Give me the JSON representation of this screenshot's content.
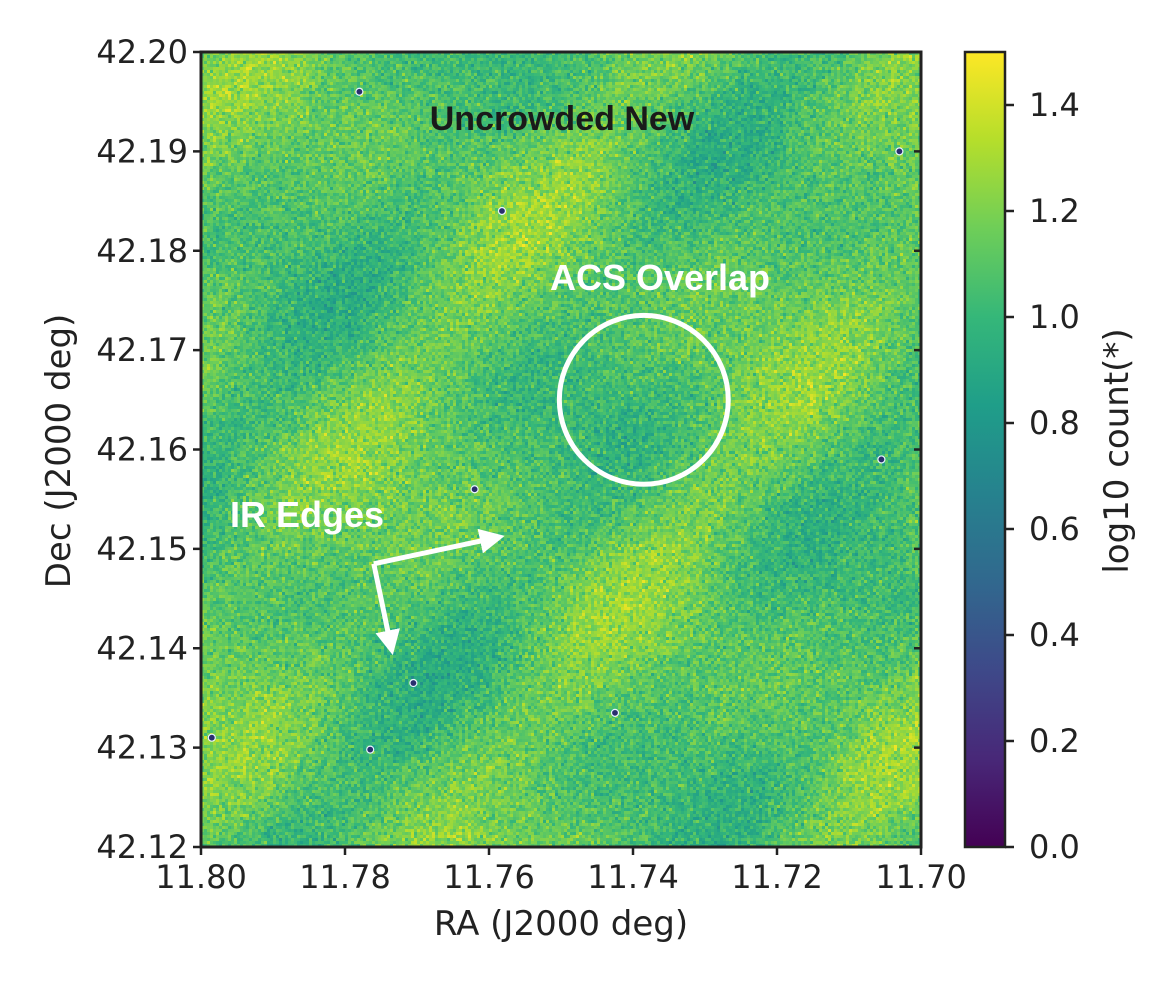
{
  "chart_data": {
    "type": "heatmap",
    "title": "Uncrowded New",
    "xlabel": "RA (J2000 deg)",
    "ylabel": "Dec (J2000 deg)",
    "xlim": [
      11.8,
      11.7
    ],
    "ylim": [
      42.12,
      42.2
    ],
    "x_ticks": [
      "11.80",
      "11.78",
      "11.76",
      "11.74",
      "11.72",
      "11.70"
    ],
    "x_tick_values": [
      11.8,
      11.78,
      11.76,
      11.74,
      11.72,
      11.7
    ],
    "y_ticks": [
      "42.12",
      "42.13",
      "42.14",
      "42.15",
      "42.16",
      "42.17",
      "42.18",
      "42.19",
      "42.20"
    ],
    "y_tick_values": [
      42.12,
      42.13,
      42.14,
      42.15,
      42.16,
      42.17,
      42.18,
      42.19,
      42.2
    ],
    "colorbar": {
      "label": "log10 count(*)",
      "range": [
        0.0,
        1.5
      ],
      "ticks": [
        "0.0",
        "0.2",
        "0.4",
        "0.6",
        "0.8",
        "1.0",
        "1.2",
        "1.4"
      ],
      "tick_values": [
        0.0,
        0.2,
        0.4,
        0.6,
        0.8,
        1.0,
        1.2,
        1.4
      ],
      "colormap": "viridis",
      "colors": [
        "#440154",
        "#482878",
        "#3e4989",
        "#31688e",
        "#26828e",
        "#1f9e89",
        "#35b779",
        "#6ece58",
        "#b5de2b",
        "#fde725"
      ]
    },
    "typical_value": 1.1,
    "annotations": [
      {
        "text": "ACS Overlap",
        "shape": "circle",
        "center_ra": 11.7385,
        "center_dec": 42.165,
        "radius_dec": 0.0085
      },
      {
        "text": "IR Edges",
        "shape": "arrows",
        "arrow_tails": [
          [
            11.776,
            42.1485
          ],
          [
            11.776,
            42.1485
          ]
        ],
        "arrow_heads": [
          [
            11.7585,
            42.1512
          ],
          [
            11.7735,
            42.1398
          ]
        ]
      }
    ],
    "point_sources": [
      [
        11.778,
        42.196
      ],
      [
        11.7582,
        42.184
      ],
      [
        11.703,
        42.19
      ],
      [
        11.7055,
        42.159
      ],
      [
        11.7705,
        42.1365
      ],
      [
        11.7425,
        42.1335
      ],
      [
        11.7765,
        42.1298
      ],
      [
        11.7985,
        42.131
      ],
      [
        11.762,
        42.156
      ]
    ]
  }
}
